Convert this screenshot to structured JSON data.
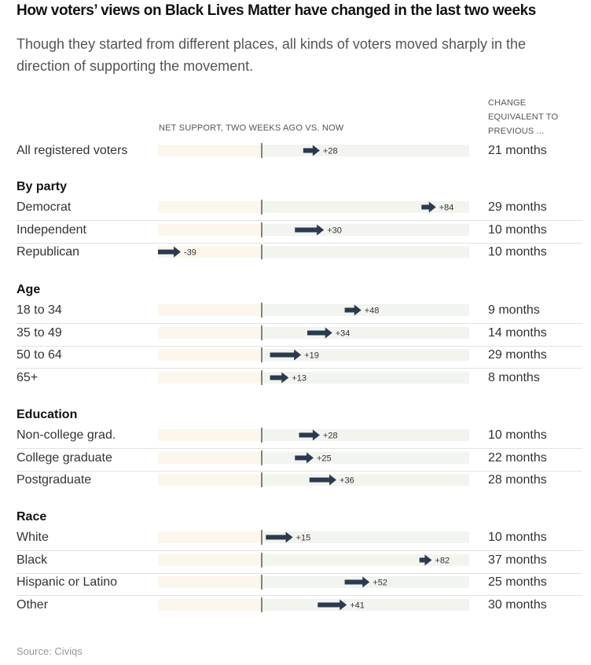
{
  "title": "How voters’ views on Black Lives Matter have changed in the last two weeks",
  "subtitle": "Though they started from different places, all kinds of voters moved sharply in the direction of supporting the movement.",
  "col_header": "NET SUPPORT, TWO WEEKS AGO VS. NOW",
  "change_header": "CHANGE EQUIVALENT TO PREVIOUS ...",
  "source": "Source: Civiqs",
  "colors": {
    "arrow": "#2b3a4e",
    "bg_negative": "#fdf6ec",
    "bg_positive": "#f2f4f0",
    "axis": "#333333"
  },
  "chart_data": {
    "type": "arrow",
    "xlim": [
      -50,
      100
    ],
    "groups": [
      {
        "heading": "",
        "rows": [
          {
            "label": "All registered voters",
            "start": 20,
            "end": 28,
            "change_label": "+28",
            "months": "21 months"
          }
        ]
      },
      {
        "heading": "By party",
        "rows": [
          {
            "label": "Democrat",
            "start": 77,
            "end": 84,
            "change_label": "+84",
            "months": "29 months"
          },
          {
            "label": "Independent",
            "start": 16,
            "end": 30,
            "change_label": "+30",
            "months": "10 months"
          },
          {
            "label": "Republican",
            "start": -50,
            "end": -39,
            "change_label": "-39",
            "months": "10 months"
          }
        ]
      },
      {
        "heading": "Age",
        "rows": [
          {
            "label": "18 to 34",
            "start": 40,
            "end": 48,
            "change_label": "+48",
            "months": "9 months"
          },
          {
            "label": "35 to 49",
            "start": 22,
            "end": 34,
            "change_label": "+34",
            "months": "14 months"
          },
          {
            "label": "50 to 64",
            "start": 4,
            "end": 19,
            "change_label": "+19",
            "months": "29 months"
          },
          {
            "label": "65+",
            "start": 4,
            "end": 13,
            "change_label": "+13",
            "months": "8 months"
          }
        ]
      },
      {
        "heading": "Education",
        "rows": [
          {
            "label": "Non-college grad.",
            "start": 18,
            "end": 28,
            "change_label": "+28",
            "months": "10 months"
          },
          {
            "label": "College graduate",
            "start": 16,
            "end": 25,
            "change_label": "+25",
            "months": "22 months"
          },
          {
            "label": "Postgraduate",
            "start": 23,
            "end": 36,
            "change_label": "+36",
            "months": "28 months"
          }
        ]
      },
      {
        "heading": "Race",
        "rows": [
          {
            "label": "White",
            "start": 2,
            "end": 15,
            "change_label": "+15",
            "months": "10 months"
          },
          {
            "label": "Black",
            "start": 76,
            "end": 82,
            "change_label": "+82",
            "months": "37 months"
          },
          {
            "label": "Hispanic or Latino",
            "start": 40,
            "end": 52,
            "change_label": "+52",
            "months": "25 months"
          },
          {
            "label": "Other",
            "start": 27,
            "end": 41,
            "change_label": "+41",
            "months": "30 months"
          }
        ]
      }
    ]
  }
}
